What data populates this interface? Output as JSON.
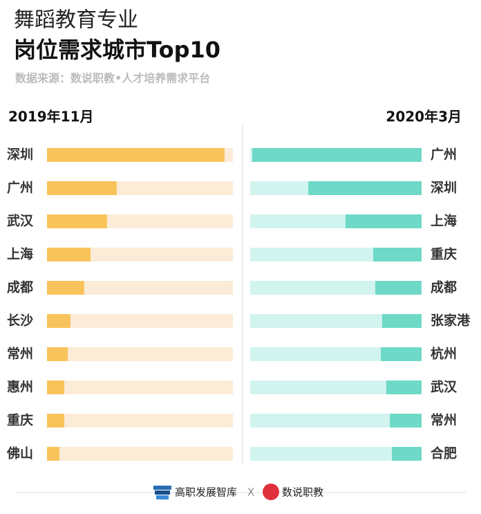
{
  "header": {
    "title": "舞蹈教育专业",
    "subtitle": "岗位需求城市Top10",
    "source": "数据来源：数说职教•人才培养需求平台"
  },
  "chart_data": [
    {
      "type": "bar",
      "title": "2019年11月",
      "bar_direction": "right",
      "color": "#f9c35b",
      "track_color": "#fbebd7",
      "categories": [
        "深圳",
        "广州",
        "武汉",
        "上海",
        "成都",
        "长沙",
        "常州",
        "惠州",
        "重庆",
        "佛山"
      ],
      "values": [
        95.5,
        37.5,
        32.3,
        23.4,
        20,
        12.6,
        11.2,
        9.3,
        9.3,
        6.7
      ],
      "xlim": [
        0,
        100
      ]
    },
    {
      "type": "bar",
      "title": "2020年3月",
      "bar_direction": "left",
      "color": "#6dd9c6",
      "track_color": "#d2f4ef",
      "categories": [
        "广州",
        "深圳",
        "上海",
        "重庆",
        "成都",
        "张家港",
        "杭州",
        "武汉",
        "常州",
        "合肥"
      ],
      "values": [
        98.8,
        66.1,
        44.4,
        28.2,
        27,
        23,
        23.8,
        20.6,
        18.5,
        17.3
      ],
      "xlim": [
        0,
        100
      ]
    }
  ],
  "footer": {
    "left": "高职发展智库",
    "separator": "X",
    "right": "数说职教"
  }
}
